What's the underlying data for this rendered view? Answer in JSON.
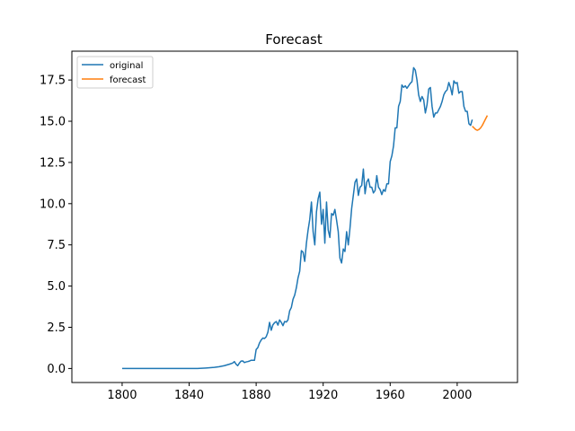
{
  "chart_data": {
    "type": "line",
    "title": "Forecast",
    "xlabel": "",
    "ylabel": "",
    "xlim": [
      1770,
      2036
    ],
    "ylim": [
      -0.85,
      19.25
    ],
    "xticks": [
      1800,
      1840,
      1880,
      1920,
      1960,
      2000
    ],
    "yticks": [
      0.0,
      2.5,
      5.0,
      7.5,
      10.0,
      12.5,
      15.0,
      17.5
    ],
    "ytick_labels": [
      "0.0",
      "2.5",
      "5.0",
      "7.5",
      "10.0",
      "12.5",
      "15.0",
      "17.5"
    ],
    "grid": false,
    "legend_position": "top-left",
    "series": [
      {
        "name": "original",
        "color": "#1f77b4",
        "points": [
          [
            1800,
            0.0
          ],
          [
            1820,
            0.0
          ],
          [
            1845,
            0.0
          ],
          [
            1850,
            0.03
          ],
          [
            1855,
            0.07
          ],
          [
            1858,
            0.11
          ],
          [
            1861,
            0.17
          ],
          [
            1864,
            0.26
          ],
          [
            1866,
            0.33
          ],
          [
            1867,
            0.42
          ],
          [
            1868,
            0.26
          ],
          [
            1869,
            0.17
          ],
          [
            1870,
            0.33
          ],
          [
            1871,
            0.45
          ],
          [
            1872,
            0.46
          ],
          [
            1873,
            0.36
          ],
          [
            1874,
            0.4
          ],
          [
            1875,
            0.42
          ],
          [
            1876,
            0.45
          ],
          [
            1877,
            0.5
          ],
          [
            1878,
            0.5
          ],
          [
            1879,
            0.5
          ],
          [
            1880,
            1.15
          ],
          [
            1881,
            1.27
          ],
          [
            1882,
            1.55
          ],
          [
            1883,
            1.73
          ],
          [
            1884,
            1.85
          ],
          [
            1885,
            1.82
          ],
          [
            1886,
            1.93
          ],
          [
            1887,
            2.2
          ],
          [
            1888,
            2.8
          ],
          [
            1889,
            2.32
          ],
          [
            1890,
            2.65
          ],
          [
            1891,
            2.78
          ],
          [
            1892,
            2.85
          ],
          [
            1893,
            2.63
          ],
          [
            1894,
            2.95
          ],
          [
            1895,
            2.8
          ],
          [
            1896,
            2.6
          ],
          [
            1897,
            2.85
          ],
          [
            1898,
            2.82
          ],
          [
            1899,
            2.95
          ],
          [
            1900,
            3.5
          ],
          [
            1901,
            3.7
          ],
          [
            1902,
            4.2
          ],
          [
            1903,
            4.45
          ],
          [
            1904,
            4.9
          ],
          [
            1905,
            5.5
          ],
          [
            1906,
            5.9
          ],
          [
            1907,
            7.15
          ],
          [
            1908,
            7.05
          ],
          [
            1909,
            6.5
          ],
          [
            1910,
            7.6
          ],
          [
            1911,
            8.4
          ],
          [
            1912,
            9.05
          ],
          [
            1913,
            10.1
          ],
          [
            1914,
            8.3
          ],
          [
            1915,
            7.5
          ],
          [
            1916,
            9.5
          ],
          [
            1917,
            10.3
          ],
          [
            1918,
            10.7
          ],
          [
            1919,
            8.75
          ],
          [
            1920,
            9.65
          ],
          [
            1921,
            7.6
          ],
          [
            1922,
            10.1
          ],
          [
            1923,
            8.4
          ],
          [
            1924,
            7.95
          ],
          [
            1925,
            9.4
          ],
          [
            1926,
            9.3
          ],
          [
            1927,
            9.65
          ],
          [
            1928,
            9.0
          ],
          [
            1929,
            8.3
          ],
          [
            1930,
            6.7
          ],
          [
            1931,
            6.4
          ],
          [
            1932,
            7.25
          ],
          [
            1933,
            7.1
          ],
          [
            1934,
            8.3
          ],
          [
            1935,
            7.5
          ],
          [
            1936,
            8.5
          ],
          [
            1937,
            9.7
          ],
          [
            1938,
            10.5
          ],
          [
            1939,
            11.3
          ],
          [
            1940,
            11.5
          ],
          [
            1941,
            10.5
          ],
          [
            1942,
            11.0
          ],
          [
            1943,
            11.1
          ],
          [
            1944,
            12.1
          ],
          [
            1945,
            10.6
          ],
          [
            1946,
            11.3
          ],
          [
            1947,
            11.5
          ],
          [
            1948,
            11.0
          ],
          [
            1949,
            11.0
          ],
          [
            1950,
            10.65
          ],
          [
            1951,
            10.8
          ],
          [
            1952,
            11.7
          ],
          [
            1953,
            11.0
          ],
          [
            1954,
            10.85
          ],
          [
            1955,
            10.55
          ],
          [
            1956,
            10.85
          ],
          [
            1957,
            10.75
          ],
          [
            1958,
            11.2
          ],
          [
            1959,
            11.2
          ],
          [
            1960,
            12.55
          ],
          [
            1961,
            12.9
          ],
          [
            1962,
            13.5
          ],
          [
            1963,
            14.6
          ],
          [
            1964,
            14.6
          ],
          [
            1965,
            15.9
          ],
          [
            1966,
            16.2
          ],
          [
            1967,
            17.2
          ],
          [
            1968,
            17.05
          ],
          [
            1969,
            17.15
          ],
          [
            1970,
            17.0
          ],
          [
            1971,
            17.15
          ],
          [
            1972,
            17.3
          ],
          [
            1973,
            17.4
          ],
          [
            1974,
            18.25
          ],
          [
            1975,
            18.1
          ],
          [
            1976,
            17.5
          ],
          [
            1977,
            16.6
          ],
          [
            1978,
            16.2
          ],
          [
            1979,
            16.5
          ],
          [
            1980,
            16.3
          ],
          [
            1981,
            15.5
          ],
          [
            1982,
            16.0
          ],
          [
            1983,
            16.95
          ],
          [
            1984,
            17.05
          ],
          [
            1985,
            15.9
          ],
          [
            1986,
            15.25
          ],
          [
            1987,
            15.5
          ],
          [
            1988,
            15.5
          ],
          [
            1989,
            15.7
          ],
          [
            1990,
            15.9
          ],
          [
            1991,
            16.2
          ],
          [
            1992,
            16.6
          ],
          [
            1993,
            16.8
          ],
          [
            1994,
            16.9
          ],
          [
            1995,
            17.35
          ],
          [
            1996,
            17.05
          ],
          [
            1997,
            16.6
          ],
          [
            1998,
            17.45
          ],
          [
            1999,
            17.3
          ],
          [
            2000,
            17.35
          ],
          [
            2001,
            16.7
          ],
          [
            2002,
            16.8
          ],
          [
            2003,
            16.8
          ],
          [
            2004,
            15.9
          ],
          [
            2005,
            15.6
          ],
          [
            2006,
            15.6
          ],
          [
            2007,
            14.85
          ],
          [
            2008,
            14.75
          ],
          [
            2009,
            15.1
          ]
        ]
      },
      {
        "name": "forecast",
        "color": "#ff7f0e",
        "points": [
          [
            2009,
            14.7
          ],
          [
            2010,
            14.6
          ],
          [
            2011,
            14.5
          ],
          [
            2012,
            14.45
          ],
          [
            2013,
            14.5
          ],
          [
            2014,
            14.6
          ],
          [
            2015,
            14.75
          ],
          [
            2016,
            14.95
          ],
          [
            2017,
            15.15
          ],
          [
            2018,
            15.35
          ]
        ]
      }
    ]
  }
}
